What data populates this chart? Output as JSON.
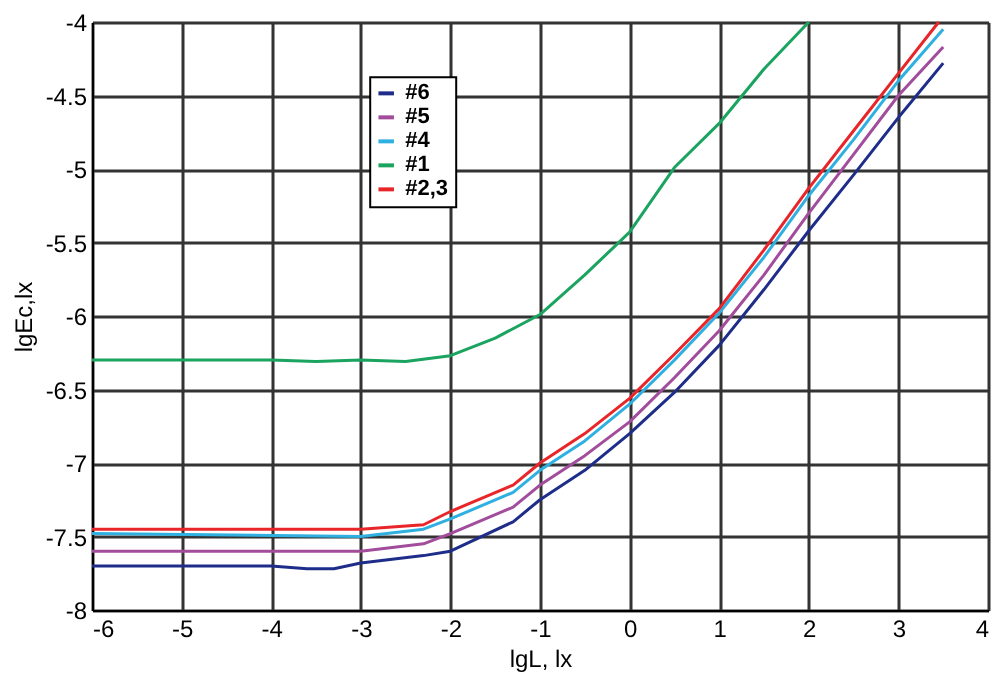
{
  "chart_data": {
    "type": "line",
    "xlabel": "lgL, lx",
    "ylabel": "lgEc,lx",
    "xlim": [
      -6,
      4
    ],
    "xticks": [
      -6,
      -5,
      -4,
      -3,
      -2,
      -1,
      0,
      1,
      2,
      3,
      4
    ],
    "ylim": [
      -8,
      -4
    ],
    "yticks": [
      -8,
      -7.5,
      -7,
      -6.5,
      -6,
      -5.5,
      -5,
      -4.5,
      -4
    ],
    "grid": true,
    "legend": "top left",
    "marker": "none",
    "line_style": "solid",
    "series": [
      {
        "name": "#6",
        "color": "#1f2d8a",
        "x": [
          -6,
          -4,
          -3.6,
          -3.3,
          -3,
          -2.3,
          -2,
          -1.3,
          -1,
          -0.5,
          0,
          0.5,
          1,
          1.5,
          2,
          2.5,
          3,
          3.5
        ],
        "values": [
          -7.7,
          -7.7,
          -7.72,
          -7.72,
          -7.68,
          -7.63,
          -7.6,
          -7.4,
          -7.25,
          -7.05,
          -6.8,
          -6.52,
          -6.2,
          -5.82,
          -5.42,
          -5.04,
          -4.65,
          -4.28
        ]
      },
      {
        "name": "#5",
        "color": "#a24c9c",
        "x": [
          -6,
          -3,
          -2.3,
          -2,
          -1.3,
          -1,
          -0.5,
          0,
          0.5,
          1,
          1.5,
          2,
          2.5,
          3,
          3.5
        ],
        "values": [
          -7.6,
          -7.6,
          -7.55,
          -7.48,
          -7.3,
          -7.15,
          -6.95,
          -6.72,
          -6.42,
          -6.1,
          -5.72,
          -5.3,
          -4.9,
          -4.5,
          -4.17
        ]
      },
      {
        "name": "#4",
        "color": "#2fb0e0",
        "x": [
          -6,
          -3,
          -2.3,
          -2,
          -1.3,
          -1,
          -0.5,
          0,
          0.5,
          1,
          1.5,
          2,
          2.5,
          3,
          3.5
        ],
        "values": [
          -7.48,
          -7.5,
          -7.45,
          -7.38,
          -7.2,
          -7.05,
          -6.85,
          -6.6,
          -6.3,
          -5.98,
          -5.6,
          -5.18,
          -4.8,
          -4.4,
          -4.05
        ]
      },
      {
        "name": "#1",
        "color": "#1ba360",
        "x": [
          -6,
          -4,
          -3.5,
          -3,
          -2.5,
          -2,
          -1.5,
          -1,
          -0.5,
          0,
          0.5,
          1,
          1.5,
          2
        ],
        "values": [
          -6.3,
          -6.3,
          -6.31,
          -6.3,
          -6.31,
          -6.27,
          -6.15,
          -5.99,
          -5.72,
          -5.43,
          -4.99,
          -4.69,
          -4.32,
          -4.0
        ]
      },
      {
        "name": "#2,3",
        "color": "#e8262a",
        "x": [
          -6,
          -3,
          -2.3,
          -2,
          -1.3,
          -1,
          -0.5,
          0,
          0.5,
          1,
          1.5,
          2,
          2.5,
          3,
          3.45
        ],
        "values": [
          -7.45,
          -7.45,
          -7.42,
          -7.33,
          -7.15,
          -7.0,
          -6.8,
          -6.56,
          -6.26,
          -5.95,
          -5.55,
          -5.13,
          -4.74,
          -4.35,
          -4.0
        ]
      }
    ]
  }
}
